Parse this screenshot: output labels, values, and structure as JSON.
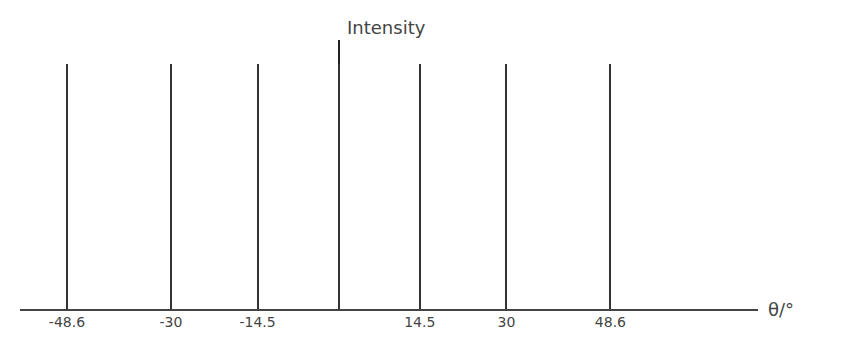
{
  "chart_data": {
    "type": "bar",
    "x_label": "θ/°",
    "y_label": "Intensity",
    "x": [
      -48.6,
      -30,
      -14.5,
      0,
      14.5,
      30,
      48.6
    ],
    "values": [
      1,
      1,
      1,
      1,
      1,
      1,
      1
    ],
    "xlim": [
      -57,
      75
    ],
    "xticks": [
      -48.6,
      -30,
      -14.5,
      14.5,
      30,
      48.6
    ],
    "ylim": [
      0,
      1.1
    ],
    "tick_labels": "x",
    "grid": false,
    "color": "#333333"
  }
}
